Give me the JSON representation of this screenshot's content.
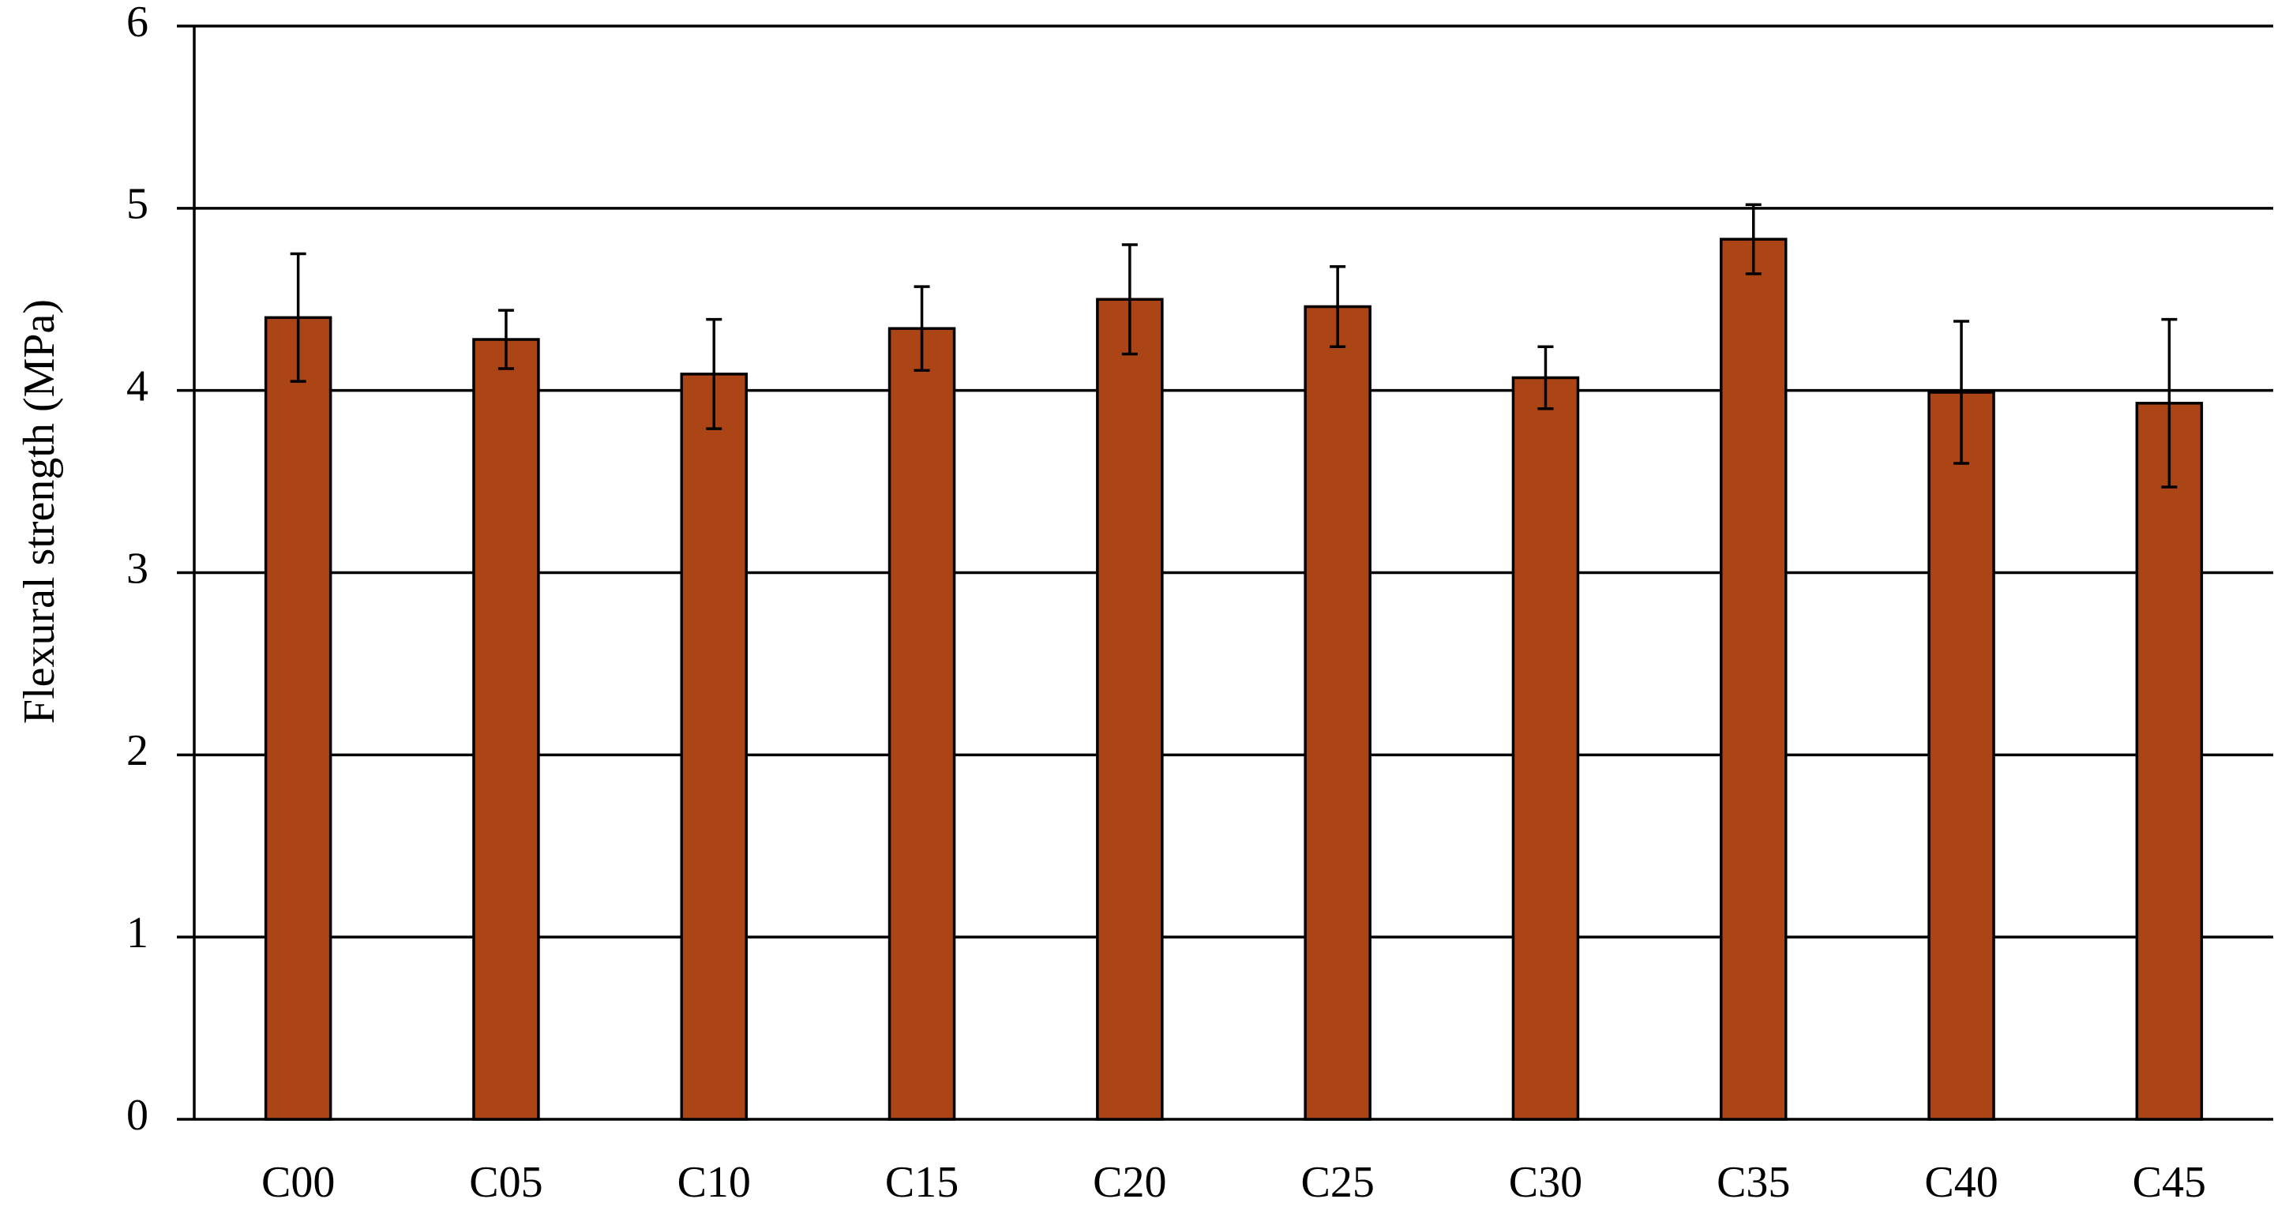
{
  "chart_data": {
    "type": "bar",
    "y_label": "Flexural strength (MPa)",
    "categories": [
      "C00",
      "C05",
      "C10",
      "C15",
      "C20",
      "C25",
      "C30",
      "C35",
      "C40",
      "C45"
    ],
    "values": [
      4.4,
      4.28,
      4.09,
      4.34,
      4.5,
      4.46,
      4.07,
      4.83,
      3.99,
      3.93
    ],
    "errors": [
      0.35,
      0.16,
      0.3,
      0.23,
      0.3,
      0.22,
      0.17,
      0.19,
      0.39,
      0.46
    ],
    "color": "#ab4516",
    "ylim": [
      0,
      6
    ],
    "yticks": [
      0,
      1,
      2,
      3,
      4,
      5,
      6
    ],
    "grid": true
  }
}
